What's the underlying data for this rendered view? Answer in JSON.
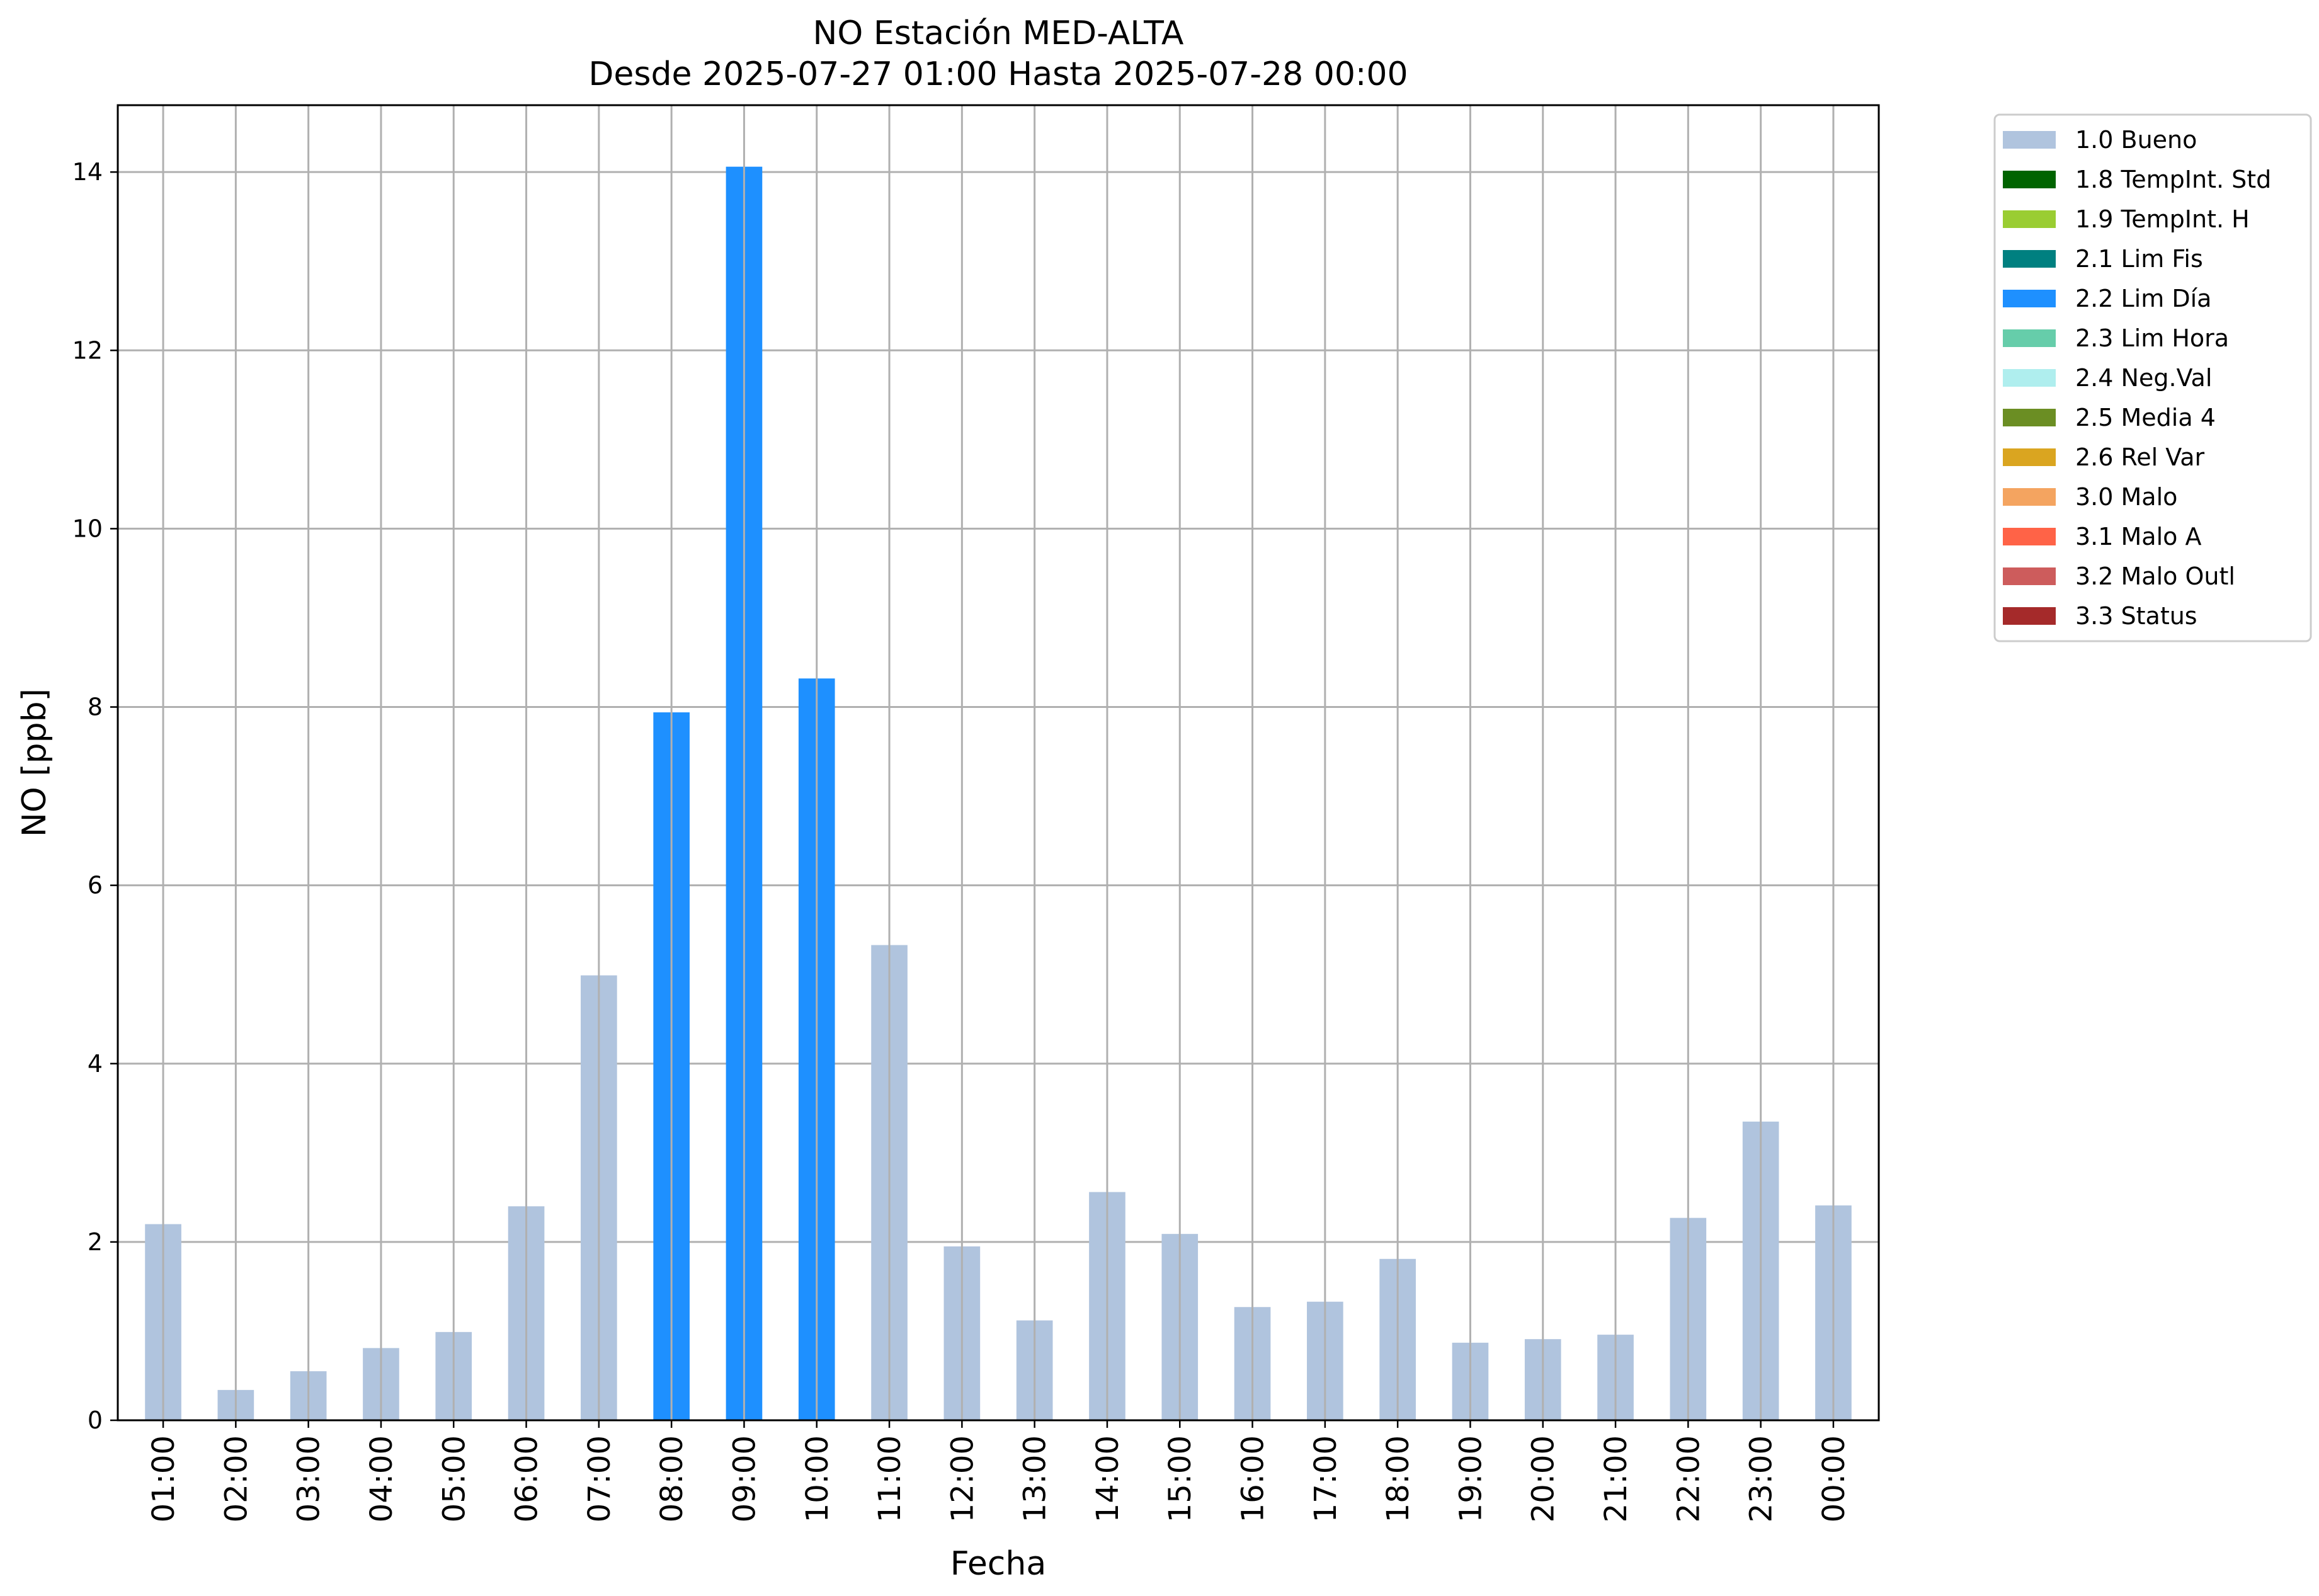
{
  "chart_data": {
    "type": "bar",
    "title": "NO Estación MED-ALTA",
    "subtitle": "Desde 2025-07-27 01:00 Hasta 2025-07-28 00:00",
    "xlabel": "Fecha",
    "ylabel": "NO [ppb]",
    "ylim": [
      0,
      14.75
    ],
    "yticks": [
      "0",
      "2",
      "4",
      "6",
      "8",
      "10",
      "12",
      "14"
    ],
    "grid": true,
    "legend_position": "outside-top-right",
    "categories": [
      "01:00",
      "02:00",
      "03:00",
      "04:00",
      "05:00",
      "06:00",
      "07:00",
      "08:00",
      "09:00",
      "10:00",
      "11:00",
      "12:00",
      "13:00",
      "14:00",
      "15:00",
      "16:00",
      "17:00",
      "18:00",
      "19:00",
      "20:00",
      "21:00",
      "22:00",
      "23:00",
      "00:00"
    ],
    "values": [
      2.2,
      0.34,
      0.55,
      0.81,
      0.99,
      2.4,
      4.99,
      7.94,
      14.06,
      8.32,
      5.33,
      1.95,
      1.12,
      2.56,
      2.09,
      1.27,
      1.33,
      1.81,
      0.87,
      0.91,
      0.96,
      2.27,
      3.35,
      2.41
    ],
    "flags": [
      "1.0 Bueno",
      "1.0 Bueno",
      "1.0 Bueno",
      "1.0 Bueno",
      "1.0 Bueno",
      "1.0 Bueno",
      "1.0 Bueno",
      "2.2 Lim Día",
      "2.2 Lim Día",
      "2.2 Lim Día",
      "1.0 Bueno",
      "1.0 Bueno",
      "1.0 Bueno",
      "1.0 Bueno",
      "1.0 Bueno",
      "1.0 Bueno",
      "1.0 Bueno",
      "1.0 Bueno",
      "1.0 Bueno",
      "1.0 Bueno",
      "1.0 Bueno",
      "1.0 Bueno",
      "1.0 Bueno",
      "1.0 Bueno"
    ],
    "legend": [
      {
        "label": "1.0 Bueno",
        "color": "#b0c4de"
      },
      {
        "label": "1.8 TempInt. Std",
        "color": "#006400"
      },
      {
        "label": "1.9 TempInt. H",
        "color": "#9acd32"
      },
      {
        "label": "2.1 Lim Fis",
        "color": "#008080"
      },
      {
        "label": "2.2 Lim Día",
        "color": "#1e90ff"
      },
      {
        "label": "2.3 Lim Hora",
        "color": "#66cdaa"
      },
      {
        "label": "2.4 Neg.Val",
        "color": "#afeeee"
      },
      {
        "label": "2.5 Media 4",
        "color": "#6b8e23"
      },
      {
        "label": "2.6 Rel Var",
        "color": "#daa520"
      },
      {
        "label": "3.0 Malo",
        "color": "#f4a460"
      },
      {
        "label": "3.1 Malo A",
        "color": "#ff6347"
      },
      {
        "label": "3.2 Malo Outl",
        "color": "#cd5c5c"
      },
      {
        "label": "3.3 Status",
        "color": "#a52a2a"
      }
    ]
  }
}
